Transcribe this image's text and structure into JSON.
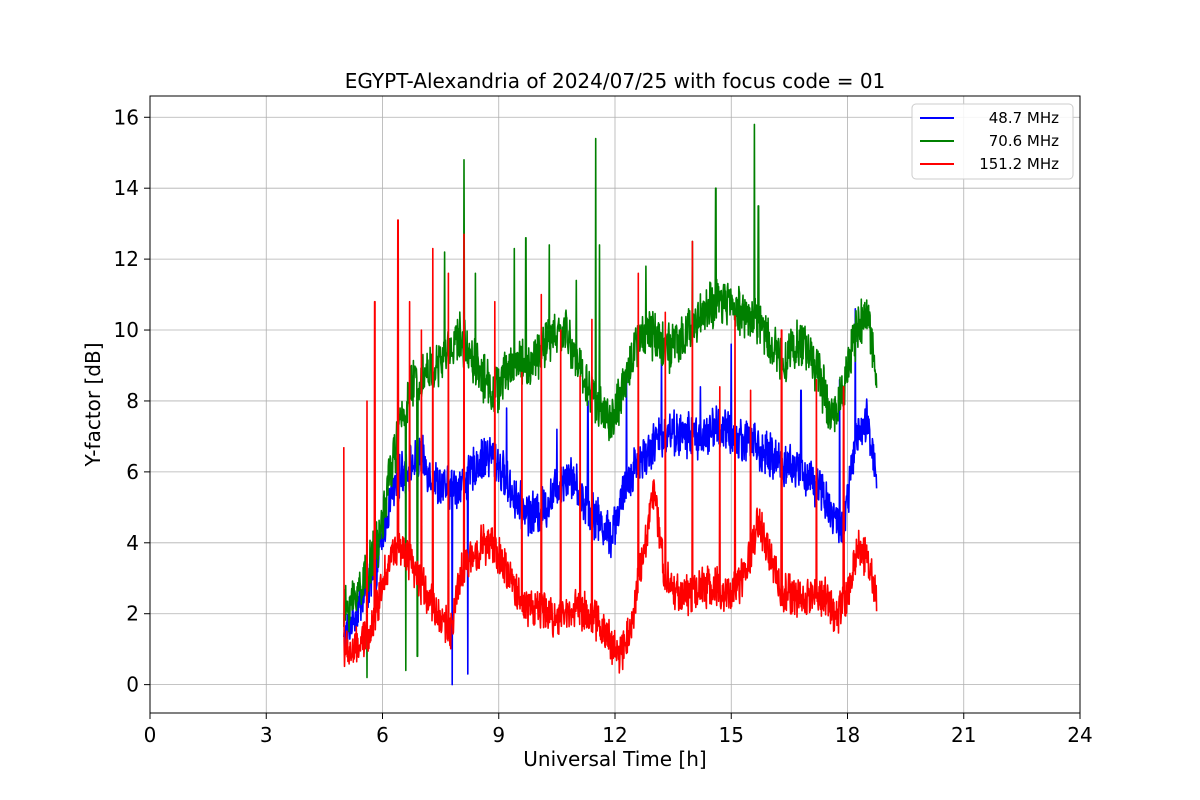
{
  "chart_data": {
    "type": "line",
    "title": "EGYPT-Alexandria of 2024/07/25 with focus code = 01",
    "xlabel": "Universal Time [h]",
    "ylabel": "Y-factor [dB]",
    "xlim": [
      0,
      24
    ],
    "ylim": [
      -0.8,
      16.6
    ],
    "xticks": [
      0,
      3,
      6,
      9,
      12,
      15,
      18,
      21,
      24
    ],
    "yticks": [
      0,
      2,
      4,
      6,
      8,
      10,
      12,
      14,
      16
    ],
    "grid": true,
    "legend_position": "top-right",
    "series": [
      {
        "name": "48.7 MHz",
        "color": "#0000ff",
        "noise": 0.55,
        "x": [
          5.0,
          5.2,
          5.5,
          5.8,
          6.0,
          6.2,
          6.5,
          6.8,
          7.0,
          7.3,
          7.6,
          7.9,
          8.2,
          8.5,
          8.8,
          9.0,
          9.3,
          9.6,
          9.9,
          10.2,
          10.5,
          10.8,
          11.0,
          11.3,
          11.6,
          11.9,
          12.2,
          12.5,
          12.8,
          13.1,
          13.4,
          13.7,
          14.0,
          14.3,
          14.6,
          14.9,
          15.2,
          15.5,
          15.8,
          16.1,
          16.4,
          16.7,
          17.0,
          17.3,
          17.6,
          17.9,
          18.2,
          18.5,
          18.75
        ],
        "y": [
          1.2,
          1.8,
          2.5,
          3.0,
          4.2,
          5.2,
          6.0,
          6.2,
          6.4,
          5.8,
          5.5,
          5.6,
          5.8,
          6.3,
          6.5,
          6.2,
          5.5,
          5.0,
          4.8,
          5.0,
          5.6,
          6.0,
          5.6,
          5.0,
          4.6,
          4.2,
          5.3,
          6.2,
          6.5,
          6.9,
          7.2,
          7.0,
          7.1,
          6.9,
          7.3,
          7.1,
          6.9,
          7.0,
          6.5,
          6.4,
          6.2,
          6.1,
          5.8,
          5.6,
          4.8,
          4.4,
          6.8,
          7.4,
          6.0
        ],
        "spikes": [
          [
            7.8,
            0.0
          ],
          [
            8.2,
            0.3
          ],
          [
            9.2,
            7.8
          ],
          [
            10.5,
            7.2
          ],
          [
            11.3,
            8.0
          ],
          [
            12.3,
            8.7
          ],
          [
            13.2,
            9.5
          ],
          [
            14.2,
            8.4
          ],
          [
            15.0,
            9.6
          ],
          [
            16.8,
            8.3
          ],
          [
            17.8,
            8.6
          ],
          [
            18.2,
            10.6
          ]
        ]
      },
      {
        "name": "70.6 MHz",
        "color": "#008000",
        "noise": 0.6,
        "x": [
          5.0,
          5.3,
          5.6,
          5.9,
          6.2,
          6.5,
          6.8,
          7.1,
          7.4,
          7.7,
          8.0,
          8.3,
          8.6,
          8.9,
          9.2,
          9.5,
          9.8,
          10.1,
          10.4,
          10.7,
          11.0,
          11.3,
          11.6,
          11.9,
          12.2,
          12.5,
          12.8,
          13.1,
          13.4,
          13.7,
          14.0,
          14.3,
          14.6,
          14.9,
          15.2,
          15.5,
          15.8,
          16.1,
          16.4,
          16.7,
          17.0,
          17.3,
          17.6,
          17.9,
          18.2,
          18.5,
          18.75
        ],
        "y": [
          2.0,
          2.5,
          3.2,
          4.0,
          6.0,
          7.5,
          8.5,
          8.8,
          8.9,
          9.4,
          9.8,
          9.3,
          8.7,
          8.2,
          8.8,
          9.2,
          8.9,
          9.5,
          9.8,
          10.0,
          9.2,
          8.4,
          7.8,
          7.4,
          8.2,
          9.6,
          10.0,
          9.8,
          9.5,
          9.6,
          10.2,
          10.5,
          10.7,
          10.8,
          10.6,
          10.4,
          10.1,
          9.4,
          9.2,
          9.6,
          9.5,
          8.6,
          7.5,
          8.4,
          9.8,
          10.4,
          9.0
        ],
        "spikes": [
          [
            5.6,
            0.2
          ],
          [
            6.6,
            0.4
          ],
          [
            6.9,
            0.8
          ],
          [
            7.6,
            12.2
          ],
          [
            8.1,
            14.8
          ],
          [
            8.4,
            11.6
          ],
          [
            9.4,
            12.3
          ],
          [
            9.7,
            12.6
          ],
          [
            10.3,
            12.4
          ],
          [
            11.0,
            11.4
          ],
          [
            11.5,
            15.4
          ],
          [
            11.6,
            12.4
          ],
          [
            12.8,
            11.8
          ],
          [
            14.0,
            12.5
          ],
          [
            14.6,
            14.0
          ],
          [
            15.6,
            15.8
          ],
          [
            15.7,
            13.5
          ]
        ]
      },
      {
        "name": "151.2 MHz",
        "color": "#ff0000",
        "noise": 0.5,
        "x": [
          5.0,
          5.2,
          5.5,
          5.8,
          6.0,
          6.3,
          6.6,
          6.9,
          7.2,
          7.5,
          7.8,
          8.0,
          8.3,
          8.6,
          8.9,
          9.2,
          9.5,
          9.8,
          10.1,
          10.4,
          10.7,
          11.0,
          11.3,
          11.6,
          11.9,
          12.1,
          12.4,
          12.7,
          13.0,
          13.3,
          13.6,
          13.9,
          14.2,
          14.5,
          14.8,
          15.1,
          15.4,
          15.7,
          16.0,
          16.3,
          16.6,
          16.9,
          17.2,
          17.5,
          17.7,
          18.0,
          18.3,
          18.6,
          18.75
        ],
        "y": [
          1.0,
          0.9,
          1.2,
          1.8,
          3.0,
          3.8,
          3.6,
          3.0,
          2.5,
          1.8,
          1.6,
          3.0,
          3.6,
          4.0,
          3.8,
          3.2,
          2.5,
          2.2,
          2.1,
          1.9,
          2.0,
          2.2,
          2.0,
          1.7,
          1.2,
          0.8,
          1.6,
          3.5,
          5.5,
          3.0,
          2.6,
          2.5,
          2.7,
          2.8,
          2.6,
          2.6,
          3.2,
          4.6,
          3.6,
          2.6,
          2.5,
          2.4,
          2.6,
          2.4,
          1.8,
          2.6,
          4.0,
          3.2,
          2.4
        ],
        "spikes": [
          [
            5.0,
            6.7
          ],
          [
            5.6,
            8.0
          ],
          [
            5.8,
            10.8
          ],
          [
            6.4,
            13.1
          ],
          [
            6.7,
            10.8
          ],
          [
            7.0,
            10.0
          ],
          [
            7.3,
            12.3
          ],
          [
            7.7,
            11.6
          ],
          [
            8.1,
            12.7
          ],
          [
            8.9,
            10.8
          ],
          [
            9.6,
            8.8
          ],
          [
            10.1,
            11.0
          ],
          [
            10.6,
            10.0
          ],
          [
            11.1,
            8.7
          ],
          [
            11.4,
            10.3
          ],
          [
            12.6,
            11.6
          ],
          [
            13.3,
            10.5
          ],
          [
            14.0,
            12.5
          ],
          [
            14.7,
            8.4
          ],
          [
            15.1,
            10.4
          ],
          [
            15.5,
            8.3
          ],
          [
            16.3,
            10.0
          ],
          [
            17.2,
            8.6
          ],
          [
            17.9,
            8.4
          ]
        ]
      }
    ]
  }
}
